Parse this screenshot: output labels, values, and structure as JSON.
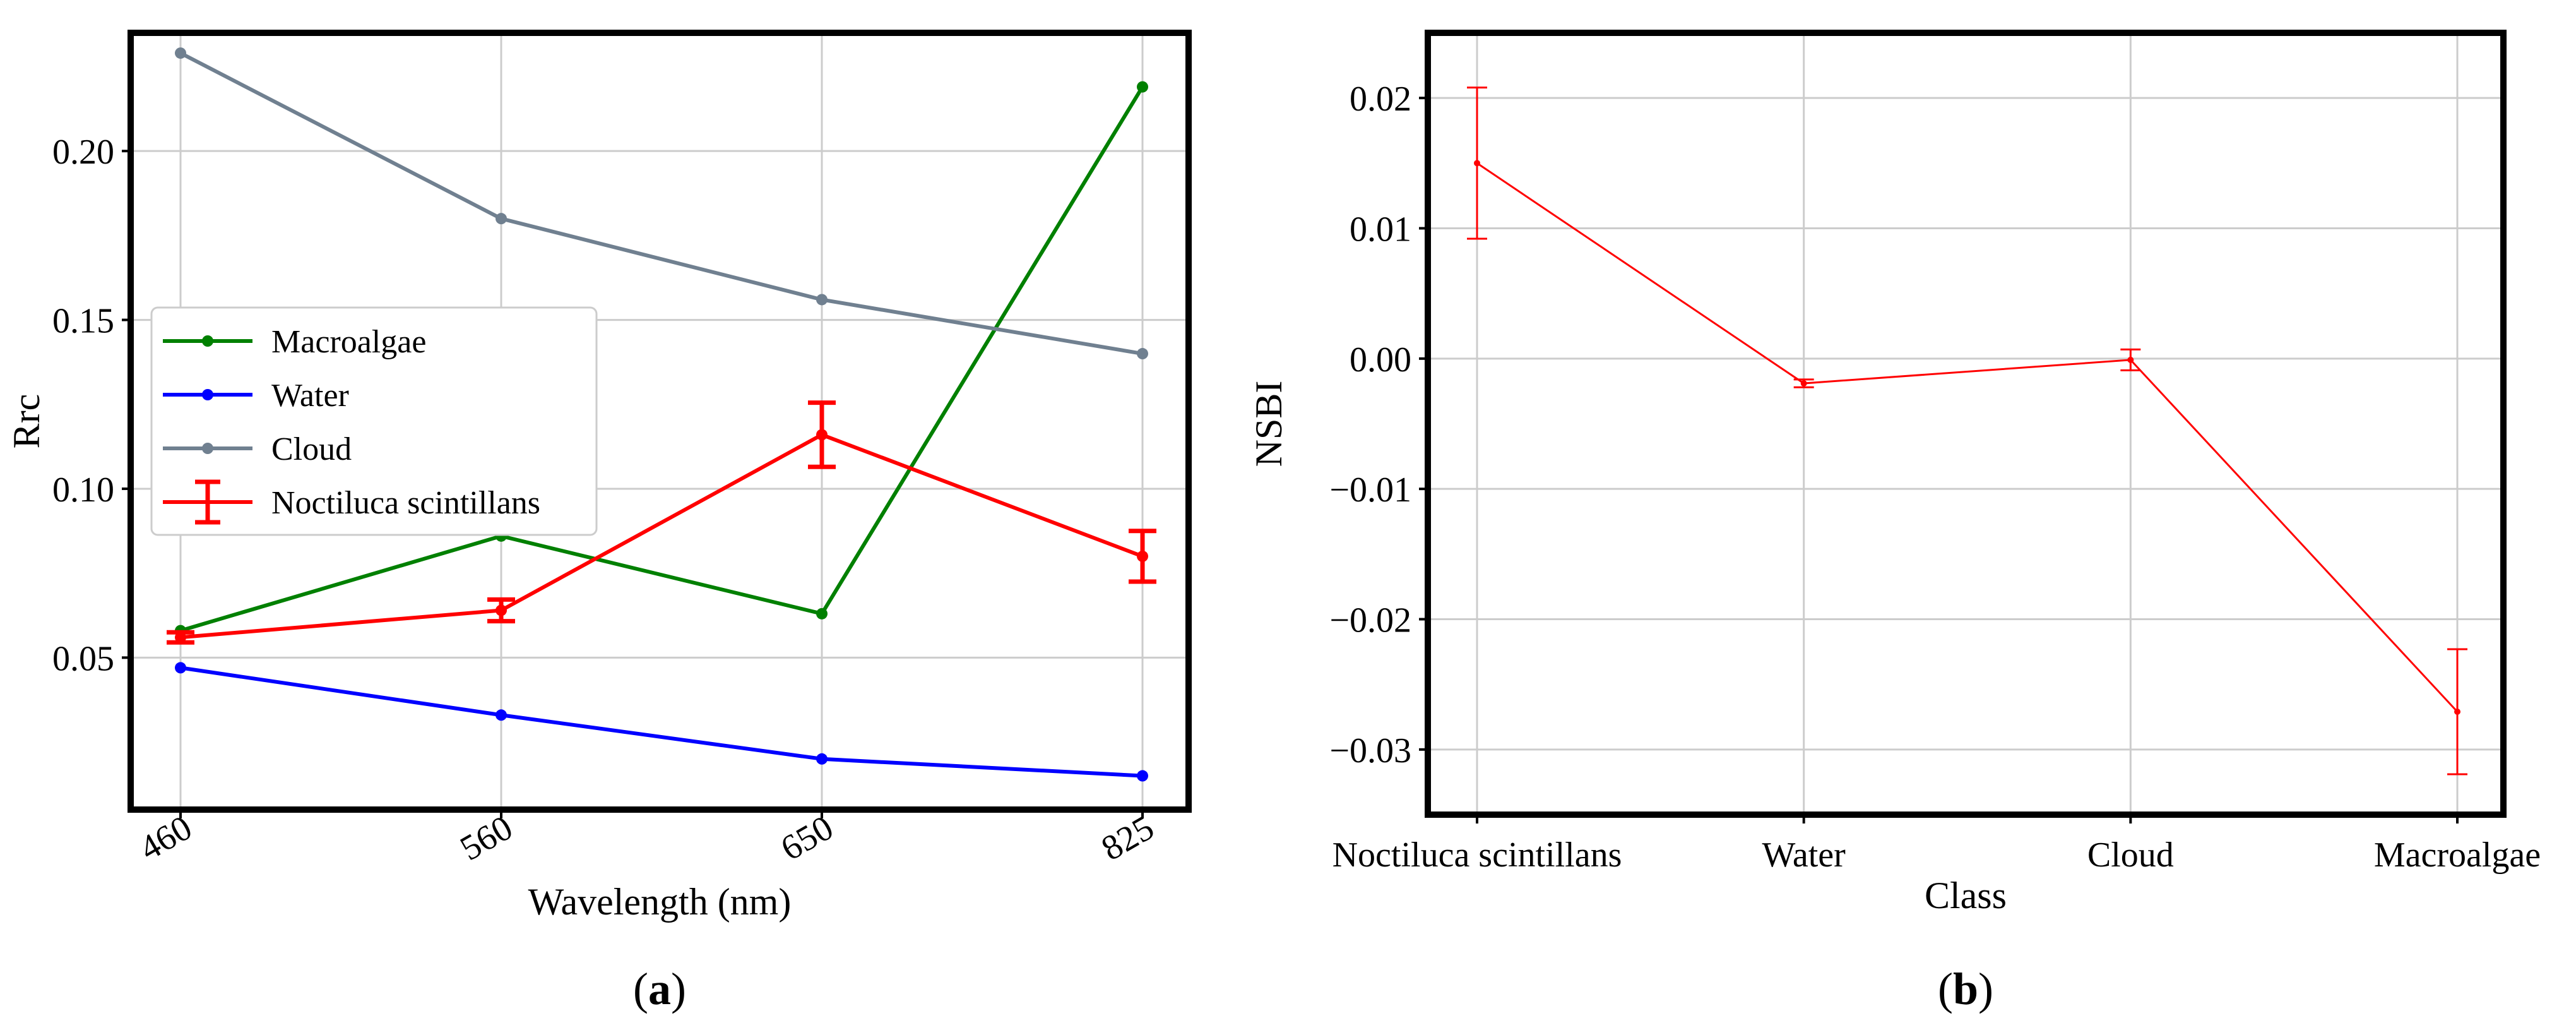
{
  "chart_data": [
    {
      "id": "a",
      "type": "line",
      "panel_label": "a",
      "title": "",
      "xlabel": "Wavelength (nm)",
      "ylabel": "Rrc",
      "categories": [
        "460",
        "560",
        "650",
        "825"
      ],
      "ylim": [
        0.005,
        0.235
      ],
      "yticks": [
        0.05,
        0.1,
        0.15,
        0.2
      ],
      "ytick_labels": [
        "0.05",
        "0.10",
        "0.15",
        "0.20"
      ],
      "grid": true,
      "legend_position": "center-left",
      "series": [
        {
          "name": "Macroalgae",
          "color": "#008000",
          "values": [
            0.058,
            0.086,
            0.063,
            0.219
          ]
        },
        {
          "name": "Water",
          "color": "#0000ff",
          "values": [
            0.047,
            0.033,
            0.02,
            0.015
          ]
        },
        {
          "name": "Cloud",
          "color": "#708090",
          "values": [
            0.229,
            0.18,
            0.156,
            0.14
          ]
        },
        {
          "name": "Noctiluca scintillans",
          "color": "#ff0000",
          "values": [
            0.056,
            0.064,
            0.116,
            0.08
          ],
          "errors": [
            0.0015,
            0.0032,
            0.0095,
            0.0075
          ]
        }
      ]
    },
    {
      "id": "b",
      "type": "line",
      "panel_label": "b",
      "title": "",
      "xlabel": "Class",
      "ylabel": "NSBI",
      "categories": [
        "Noctiluca scintillans",
        "Water",
        "Cloud",
        "Macroalgae"
      ],
      "ylim": [
        -0.035,
        0.025
      ],
      "yticks": [
        -0.03,
        -0.02,
        -0.01,
        0.0,
        0.01,
        0.02
      ],
      "ytick_labels": [
        "−0.03",
        "−0.02",
        "−0.01",
        "0.00",
        "0.01",
        "0.02"
      ],
      "grid": true,
      "series": [
        {
          "name": "NSBI",
          "color": "#ff0000",
          "values": [
            0.015,
            -0.0019,
            -0.0001,
            -0.0271
          ],
          "errors": [
            0.0058,
            0.0003,
            0.0008,
            0.0048
          ]
        }
      ]
    }
  ]
}
